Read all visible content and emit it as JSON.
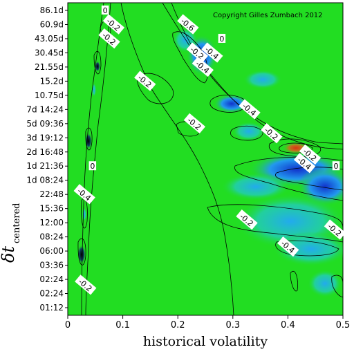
{
  "chart_data": {
    "type": "heatmap",
    "copyright": "Copyright Gilles Zumbach 2012",
    "xlabel": "historical volatility",
    "ylabel": "δt",
    "ylabel_subscript": "centered",
    "xlim": [
      0,
      0.5
    ],
    "x_ticks": [
      "0",
      "0.1",
      "0.2",
      "0.3",
      "0.4",
      "0.5"
    ],
    "y_ticks": [
      "01:12",
      "02:24",
      "02:24",
      "03:36",
      "06:00",
      "08:24",
      "12:00",
      "15:36",
      "22:48",
      "1d 08:24",
      "1d 21:36",
      "2d 16:48",
      "3d 19:12",
      "5d 09:36",
      "7d 14:24",
      "10.75d",
      "15.2d",
      "21.55d",
      "30.45d",
      "43.05d",
      "60.9d",
      "86.1d"
    ],
    "colors": {
      "background_level": "#22dd22",
      "negative_mid": "#22aaee",
      "negative_strong": "#1133cc",
      "positive_peak": "#dd3311",
      "contour": "#000000"
    },
    "contour_labels": [
      {
        "text": "0",
        "x": 0.068,
        "y_index": 21
      },
      {
        "text": "-0.2",
        "x": 0.083,
        "y_index": 20
      },
      {
        "text": "-0.2",
        "x": 0.075,
        "y_index": 19
      },
      {
        "text": "-0.6",
        "x": 0.218,
        "y_index": 20
      },
      {
        "text": "0",
        "x": 0.28,
        "y_index": 19
      },
      {
        "text": "-0.4",
        "x": 0.262,
        "y_index": 18
      },
      {
        "text": "-0.2",
        "x": 0.235,
        "y_index": 18
      },
      {
        "text": "-0.4",
        "x": 0.245,
        "y_index": 17
      },
      {
        "text": "-0.2",
        "x": 0.14,
        "y_index": 16
      },
      {
        "text": "-0.4",
        "x": 0.33,
        "y_index": 14
      },
      {
        "text": "-0.2",
        "x": 0.23,
        "y_index": 13
      },
      {
        "text": "-0.2",
        "x": 0.37,
        "y_index": 12.3
      },
      {
        "text": "-0.2",
        "x": 0.44,
        "y_index": 10.8
      },
      {
        "text": "-0.4",
        "x": 0.43,
        "y_index": 10.2
      },
      {
        "text": "0",
        "x": 0.495,
        "y_index": 10
      },
      {
        "text": "0",
        "x": 0.045,
        "y_index": 10
      },
      {
        "text": "-0.4",
        "x": 0.03,
        "y_index": 8
      },
      {
        "text": "-0.2",
        "x": 0.325,
        "y_index": 6.2
      },
      {
        "text": "-0.2",
        "x": 0.485,
        "y_index": 5.5
      },
      {
        "text": "-0.4",
        "x": 0.4,
        "y_index": 4.3
      },
      {
        "text": "-0.2",
        "x": 0.032,
        "y_index": 1.6
      }
    ]
  }
}
